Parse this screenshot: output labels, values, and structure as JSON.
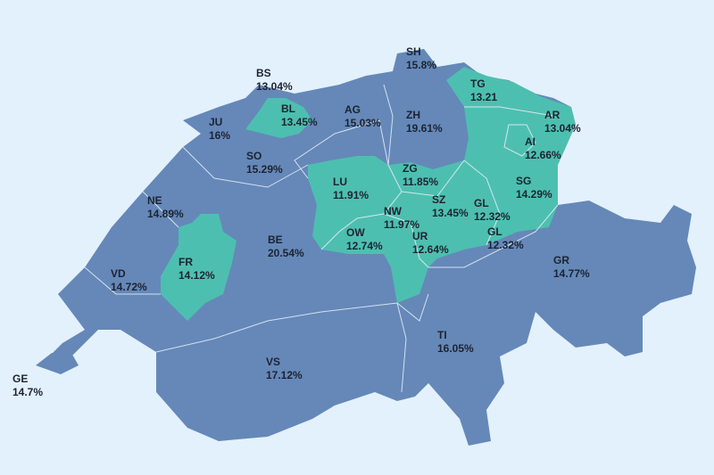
{
  "regions": [
    {
      "code": "SH",
      "value": "15.8%",
      "color": "#6588b8"
    },
    {
      "code": "BS",
      "value": "13.04%",
      "color": "#4dbfb0"
    },
    {
      "code": "TG",
      "value": "13.21",
      "color": "#4dbfb0"
    },
    {
      "code": "JU",
      "value": "16%",
      "color": "#6588b8"
    },
    {
      "code": "BL",
      "value": "13.45%",
      "color": "#4dbfb0"
    },
    {
      "code": "AG",
      "value": "15.03%",
      "color": "#6588b8"
    },
    {
      "code": "ZH",
      "value": "19.61%",
      "color": "#6588b8"
    },
    {
      "code": "AR",
      "value": "13.04%",
      "color": "#4dbfb0"
    },
    {
      "code": "AI",
      "value": "12.66%",
      "color": "#4dbfb0"
    },
    {
      "code": "SO",
      "value": "15.29%",
      "color": "#6588b8"
    },
    {
      "code": "LU",
      "value": "11.91%",
      "color": "#4dbfb0"
    },
    {
      "code": "ZG",
      "value": "11.85%",
      "color": "#4dbfb0"
    },
    {
      "code": "SG",
      "value": "14.29%",
      "color": "#4dbfb0"
    },
    {
      "code": "NE",
      "value": "14.89%",
      "color": "#6588b8"
    },
    {
      "code": "SZ",
      "value": "13.45%",
      "color": "#4dbfb0"
    },
    {
      "code": "GL",
      "value": "12.32%",
      "color": "#4dbfb0"
    },
    {
      "code": "NW",
      "value": "11.97%",
      "color": "#4dbfb0"
    },
    {
      "code": "OW",
      "value": "12.74%",
      "color": "#4dbfb0"
    },
    {
      "code": "UR",
      "value": "12.64%",
      "color": "#4dbfb0"
    },
    {
      "code": "GL",
      "value": "12.32%",
      "color": "#4dbfb0"
    },
    {
      "code": "BE",
      "value": "20.54%",
      "color": "#6588b8"
    },
    {
      "code": "FR",
      "value": "14.12%",
      "color": "#4dbfb0"
    },
    {
      "code": "GR",
      "value": "14.77%",
      "color": "#6588b8"
    },
    {
      "code": "VD",
      "value": "14.72%",
      "color": "#6588b8"
    },
    {
      "code": "TI",
      "value": "16.05%",
      "color": "#6588b8"
    },
    {
      "code": "VS",
      "value": "17.12%",
      "color": "#6588b8"
    },
    {
      "code": "GE",
      "value": "14.7%",
      "color": "#6588b8"
    }
  ]
}
